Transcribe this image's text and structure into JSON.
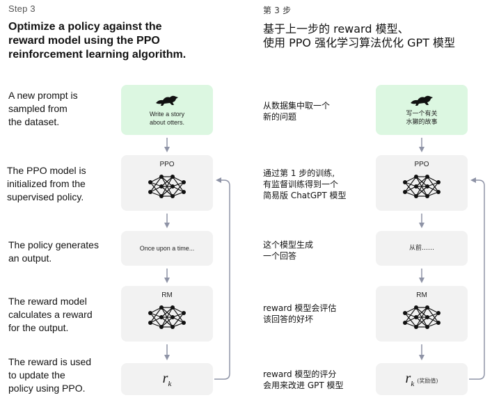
{
  "left": {
    "step": "Step 3",
    "title_lines": [
      "Optimize a policy against the",
      "reward model using the PPO",
      "reinforcement learning algorithm."
    ],
    "desc_prompt": [
      "A new prompt is",
      "sampled from",
      "the dataset."
    ],
    "desc_ppo": [
      "The PPO model is",
      "initialized from the",
      "supervised policy."
    ],
    "desc_output": [
      "The policy generates",
      "an output."
    ],
    "desc_rm": [
      "The reward model",
      "calculates a reward",
      "for the output."
    ],
    "desc_update": [
      "The reward is used",
      "to update the",
      "policy using PPO."
    ],
    "prompt_text": [
      "Write a story",
      "about otters."
    ],
    "ppo_label": "PPO",
    "output_text": "Once upon a time...",
    "rm_label": "RM",
    "reward_symbol": "r",
    "reward_sub": "k"
  },
  "right": {
    "step": "第 3 步",
    "title_lines": [
      "基于上一步的 reward 模型、",
      "使用 PPO 强化学习算法优化 GPT 模型"
    ],
    "desc_prompt": [
      "从数据集中取一个",
      "新的问题"
    ],
    "desc_ppo": [
      "通过第 1 步的训练,",
      "有监督训练得到一个",
      "简易版 ChatGPT 模型"
    ],
    "desc_output": [
      "这个模型生成",
      "一个回答"
    ],
    "desc_rm": [
      "reward 模型会评估",
      "该回答的好坏"
    ],
    "desc_update": [
      "reward 模型的评分",
      "会用来改进 GPT 模型"
    ],
    "prompt_text": [
      "写一个有关",
      "水獭的故事"
    ],
    "ppo_label": "PPO",
    "output_text": "从前……",
    "rm_label": "RM",
    "reward_symbol": "r",
    "reward_sub": "k",
    "reward_note": "(奖励值)"
  },
  "colors": {
    "prompt_box": "#dcf7e1",
    "box": "#f2f2f2",
    "arrow": "#8e93a6"
  }
}
